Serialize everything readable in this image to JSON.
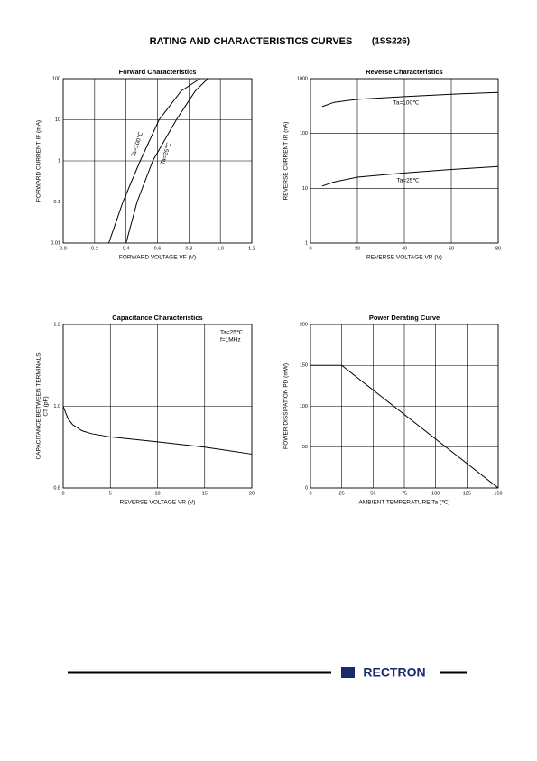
{
  "header": {
    "title": "RATING AND CHARACTERISTICS CURVES",
    "part": "(1SS226)"
  },
  "footer": {
    "brand": "RECTRON"
  },
  "chart_data": [
    {
      "type": "line",
      "title": "Forward    Characteristics",
      "x_label": "FORWARD VOLTAGE   VF   (V)",
      "y_label": "FORWARD CURRENT   IF   (mA)",
      "xlim": [
        0,
        1.2
      ],
      "xticks": [
        {
          "value": 0,
          "label": "0.0"
        },
        0.2,
        0.4,
        0.6,
        0.8,
        {
          "value": 1,
          "label": "1.0"
        },
        1.2
      ],
      "ylim": [
        0.01,
        100
      ],
      "yticks": [
        0.01,
        0.1,
        1,
        10,
        100
      ],
      "yscale": "log",
      "grid": true,
      "series": [
        {
          "name": "Ta=100℃",
          "color": "#000000",
          "x": [
            0.29,
            0.38,
            0.49,
            0.61,
            0.75,
            0.87
          ],
          "values": [
            0.01,
            0.1,
            1,
            10,
            50,
            100
          ]
        },
        {
          "name": "Ta=25℃",
          "color": "#000000",
          "x": [
            0.4,
            0.47,
            0.57,
            0.72,
            0.84,
            0.92
          ],
          "values": [
            0.01,
            0.1,
            1,
            10,
            50,
            100
          ]
        }
      ]
    },
    {
      "type": "line",
      "title": "Reverse    Characteristics",
      "x_label": "REVERSE VOLTAGE   VR   (V)",
      "y_label": "REVERSE CURRENT   IR   (nA)",
      "xlim": [
        0,
        80
      ],
      "xticks": [
        0,
        20,
        40,
        60,
        80
      ],
      "ylim": [
        1,
        1000
      ],
      "yticks": [
        1,
        10,
        100,
        1000
      ],
      "yscale": "log",
      "grid": true,
      "series": [
        {
          "name": "Ta=100℃",
          "color": "#000000",
          "x": [
            5,
            10,
            20,
            40,
            60,
            80
          ],
          "values": [
            310,
            370,
            420,
            470,
            520,
            560
          ]
        },
        {
          "name": "Ta=25℃",
          "color": "#000000",
          "x": [
            5,
            10,
            20,
            40,
            60,
            80
          ],
          "values": [
            11,
            13,
            16,
            19,
            22,
            25
          ]
        }
      ]
    },
    {
      "type": "line",
      "title": "Capacitance Characteristics",
      "x_label": "REVERSE VOLTAGE   VR   (V)",
      "y_label": "CAPACITANCE BETWEEN TERMINALS",
      "y_label_2": "CT   (pF)",
      "annotations": [
        "Ta=25℃",
        "f=1MHz"
      ],
      "xlim": [
        0,
        20
      ],
      "xticks": [
        0,
        5,
        10,
        15,
        20
      ],
      "ylim": [
        0.8,
        1.2
      ],
      "yticks": [
        0.8,
        {
          "value": 1,
          "label": "1.0"
        },
        1.2
      ],
      "yscale": "linear",
      "grid": true,
      "series": [
        {
          "color": "#000000",
          "x": [
            0,
            0.5,
            1,
            2,
            3,
            5,
            10,
            15,
            20
          ],
          "values": [
            1.0,
            0.97,
            0.955,
            0.94,
            0.933,
            0.925,
            0.913,
            0.9,
            0.883
          ]
        }
      ]
    },
    {
      "type": "line",
      "title": "Power Derating Curve",
      "x_label": "AMBIENT TEMPERATURE   Ta   (℃)",
      "y_label": "POWER DISSIPATION   PD   (mW)",
      "xlim": [
        0,
        150
      ],
      "xticks": [
        0,
        25,
        50,
        75,
        100,
        125,
        150
      ],
      "ylim": [
        0,
        200
      ],
      "yticks": [
        0,
        50,
        100,
        150,
        200
      ],
      "yscale": "linear",
      "grid": true,
      "series": [
        {
          "color": "#000000",
          "x": [
            0,
            25,
            150
          ],
          "values": [
            150,
            150,
            0
          ]
        }
      ]
    }
  ]
}
